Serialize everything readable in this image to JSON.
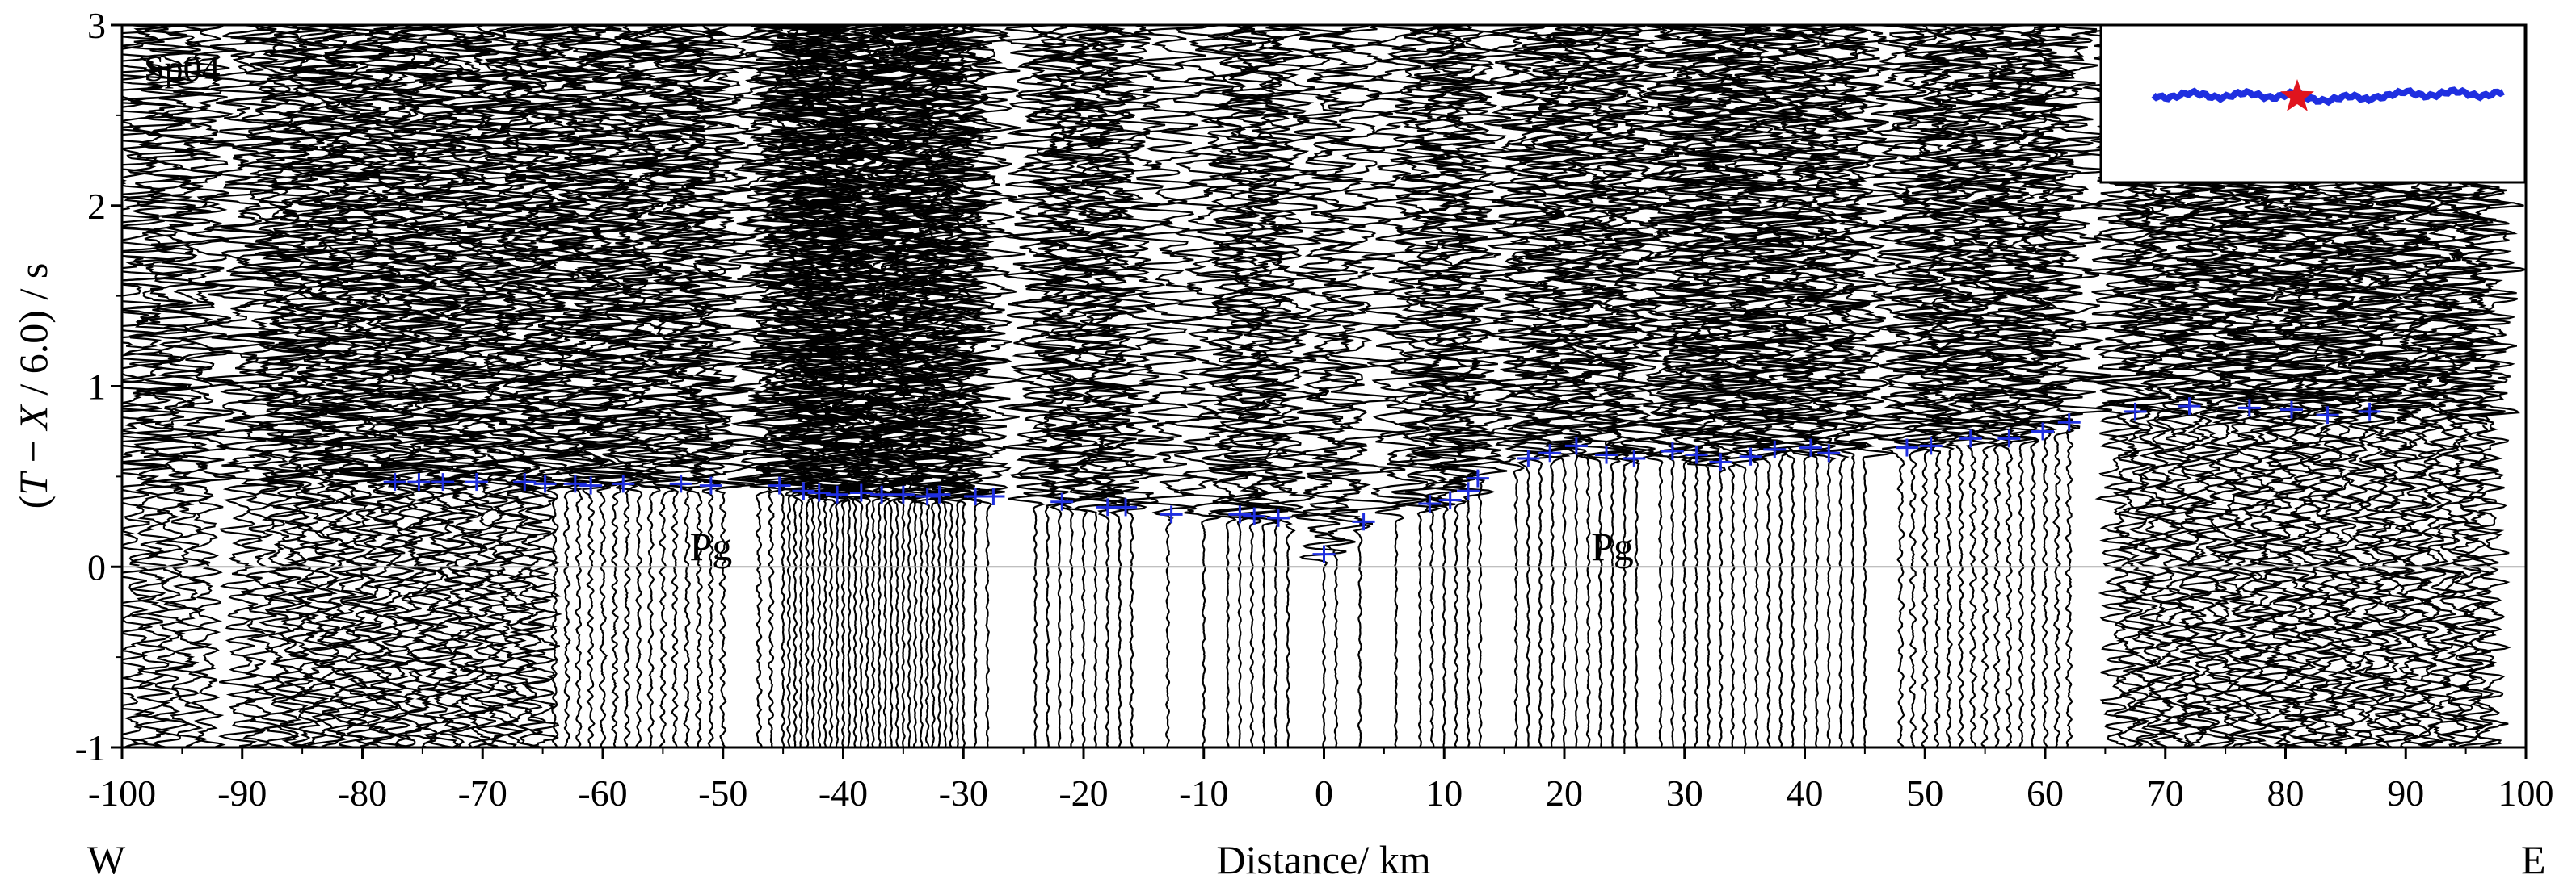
{
  "chart_data": {
    "type": "seismic-record-section",
    "shot_label": "Sp04",
    "xlabel": "Distance/ km",
    "ylabel_parts": [
      "(",
      "T",
      " − ",
      "X",
      " / 6.0) / s"
    ],
    "xlim": [
      -100,
      100
    ],
    "ylim": [
      -1,
      3
    ],
    "x_ticks": [
      -100,
      -90,
      -80,
      -70,
      -60,
      -50,
      -40,
      -30,
      -20,
      -10,
      0,
      10,
      20,
      30,
      40,
      50,
      60,
      70,
      80,
      90,
      100
    ],
    "y_ticks": [
      -1,
      0,
      1,
      2,
      3
    ],
    "reduction_velocity_km_s": 6.0,
    "direction_labels": {
      "west": "W",
      "east": "E"
    },
    "phase_annotations": [
      {
        "text": "Pg",
        "x": -51,
        "y": 0.1
      },
      {
        "text": "Pg",
        "x": 24,
        "y": 0.1
      }
    ],
    "zero_line_color": "#aaaaaa",
    "pick_color": "#1f2fe0",
    "inset": {
      "line_color": "#1f2fe0",
      "source_marker_color": "#e0141e",
      "source_marker_shape": "star"
    },
    "trace_offsets_km": [
      -99,
      -97.5,
      -96,
      -94.5,
      -93,
      -90,
      -88.5,
      -87,
      -86,
      -85,
      -84,
      -83,
      -82,
      -81,
      -80,
      -79,
      -78,
      -77,
      -76,
      -75,
      -74,
      -73,
      -72,
      -71,
      -70,
      -69,
      -68,
      -67,
      -66,
      -65,
      -64,
      -63,
      -62,
      -61,
      -60,
      -59,
      -58,
      -57,
      -56,
      -55,
      -54,
      -53,
      -52,
      -51,
      -50,
      -47,
      -46,
      -45,
      -44.5,
      -44,
      -43.5,
      -43,
      -42.5,
      -42,
      -41.5,
      -41,
      -40.5,
      -40,
      -39.5,
      -39,
      -38.5,
      -38,
      -37.5,
      -37,
      -36.5,
      -36,
      -35.5,
      -35,
      -34.5,
      -34,
      -33.5,
      -33,
      -32.5,
      -32,
      -31.5,
      -31,
      -30.5,
      -30,
      -29,
      -28,
      -24,
      -23,
      -22,
      -21,
      -20,
      -19,
      -18,
      -17,
      -16,
      -13,
      -10,
      -8,
      -7,
      -6,
      -5,
      -4,
      -3,
      0,
      1,
      3,
      6,
      8,
      9,
      10,
      11,
      12,
      13,
      16,
      17,
      18,
      19,
      20,
      21,
      22,
      23,
      24,
      25,
      26,
      28,
      29,
      30,
      31,
      32,
      33,
      34,
      35,
      36,
      37,
      38,
      39,
      40,
      41,
      42,
      43,
      44,
      45,
      48,
      49,
      50,
      51,
      52,
      53,
      54,
      55,
      56,
      57,
      58,
      59,
      60,
      61,
      62,
      66,
      67,
      68,
      69,
      70,
      71,
      72,
      73,
      74,
      75,
      76,
      77,
      78,
      79,
      80,
      81,
      82,
      83,
      84,
      85,
      86,
      87,
      88,
      89,
      90,
      91,
      92,
      93,
      94,
      95,
      96,
      97
    ],
    "picks": [
      {
        "x": -77.3,
        "t": 0.47
      },
      {
        "x": -75.3,
        "t": 0.47
      },
      {
        "x": -73.3,
        "t": 0.47
      },
      {
        "x": -70.5,
        "t": 0.47
      },
      {
        "x": -66.5,
        "t": 0.47
      },
      {
        "x": -64.8,
        "t": 0.46
      },
      {
        "x": -62.3,
        "t": 0.46
      },
      {
        "x": -61.0,
        "t": 0.45
      },
      {
        "x": -58.3,
        "t": 0.46
      },
      {
        "x": -53.5,
        "t": 0.46
      },
      {
        "x": -51.0,
        "t": 0.45
      },
      {
        "x": -45.3,
        "t": 0.45
      },
      {
        "x": -43.3,
        "t": 0.42
      },
      {
        "x": -42.0,
        "t": 0.41
      },
      {
        "x": -40.5,
        "t": 0.4
      },
      {
        "x": -38.5,
        "t": 0.41
      },
      {
        "x": -36.8,
        "t": 0.4
      },
      {
        "x": -35.0,
        "t": 0.4
      },
      {
        "x": -33.0,
        "t": 0.39
      },
      {
        "x": -32.0,
        "t": 0.4
      },
      {
        "x": -29.0,
        "t": 0.39
      },
      {
        "x": -27.5,
        "t": 0.39
      },
      {
        "x": -21.8,
        "t": 0.36
      },
      {
        "x": -18.0,
        "t": 0.33
      },
      {
        "x": -16.5,
        "t": 0.33
      },
      {
        "x": -12.7,
        "t": 0.29
      },
      {
        "x": -7.0,
        "t": 0.29
      },
      {
        "x": -5.8,
        "t": 0.28
      },
      {
        "x": -3.8,
        "t": 0.27
      },
      {
        "x": 0.0,
        "t": 0.07
      },
      {
        "x": 3.3,
        "t": 0.25
      },
      {
        "x": 8.8,
        "t": 0.35
      },
      {
        "x": 10.5,
        "t": 0.37
      },
      {
        "x": 12.0,
        "t": 0.42
      },
      {
        "x": 12.8,
        "t": 0.49
      },
      {
        "x": 17.0,
        "t": 0.6
      },
      {
        "x": 18.8,
        "t": 0.63
      },
      {
        "x": 21.0,
        "t": 0.67
      },
      {
        "x": 23.5,
        "t": 0.62
      },
      {
        "x": 25.8,
        "t": 0.6
      },
      {
        "x": 29.0,
        "t": 0.64
      },
      {
        "x": 31.0,
        "t": 0.62
      },
      {
        "x": 33.0,
        "t": 0.58
      },
      {
        "x": 35.5,
        "t": 0.61
      },
      {
        "x": 37.5,
        "t": 0.65
      },
      {
        "x": 40.5,
        "t": 0.66
      },
      {
        "x": 42.0,
        "t": 0.63
      },
      {
        "x": 48.5,
        "t": 0.66
      },
      {
        "x": 50.5,
        "t": 0.67
      },
      {
        "x": 53.8,
        "t": 0.71
      },
      {
        "x": 57.0,
        "t": 0.71
      },
      {
        "x": 59.8,
        "t": 0.75
      },
      {
        "x": 62.0,
        "t": 0.8
      },
      {
        "x": 67.5,
        "t": 0.86
      },
      {
        "x": 72.0,
        "t": 0.89
      },
      {
        "x": 77.0,
        "t": 0.88
      },
      {
        "x": 80.5,
        "t": 0.87
      },
      {
        "x": 83.5,
        "t": 0.84
      },
      {
        "x": 87.0,
        "t": 0.86
      }
    ]
  }
}
